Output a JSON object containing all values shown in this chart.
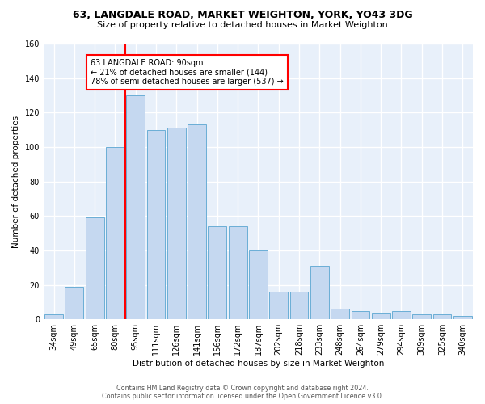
{
  "title1": "63, LANGDALE ROAD, MARKET WEIGHTON, YORK, YO43 3DG",
  "title2": "Size of property relative to detached houses in Market Weighton",
  "xlabel": "Distribution of detached houses by size in Market Weighton",
  "ylabel": "Number of detached properties",
  "categories": [
    "34sqm",
    "49sqm",
    "65sqm",
    "80sqm",
    "95sqm",
    "111sqm",
    "126sqm",
    "141sqm",
    "156sqm",
    "172sqm",
    "187sqm",
    "202sqm",
    "218sqm",
    "233sqm",
    "248sqm",
    "264sqm",
    "279sqm",
    "294sqm",
    "309sqm",
    "325sqm",
    "340sqm"
  ],
  "values": [
    3,
    19,
    59,
    100,
    130,
    110,
    111,
    113,
    54,
    54,
    40,
    16,
    16,
    31,
    6,
    5,
    4,
    5,
    3,
    3,
    2
  ],
  "bar_color": "#c5d8f0",
  "bar_edge_color": "#6aaed6",
  "background_color": "#e8f0fa",
  "grid_color": "#ffffff",
  "vline_color": "red",
  "annotation_text": "63 LANGDALE ROAD: 90sqm\n← 21% of detached houses are smaller (144)\n78% of semi-detached houses are larger (537) →",
  "annotation_box_color": "white",
  "annotation_box_edge": "red",
  "footer1": "Contains HM Land Registry data © Crown copyright and database right 2024.",
  "footer2": "Contains public sector information licensed under the Open Government Licence v3.0.",
  "ylim": [
    0,
    160
  ],
  "vline_pos": 3.5
}
